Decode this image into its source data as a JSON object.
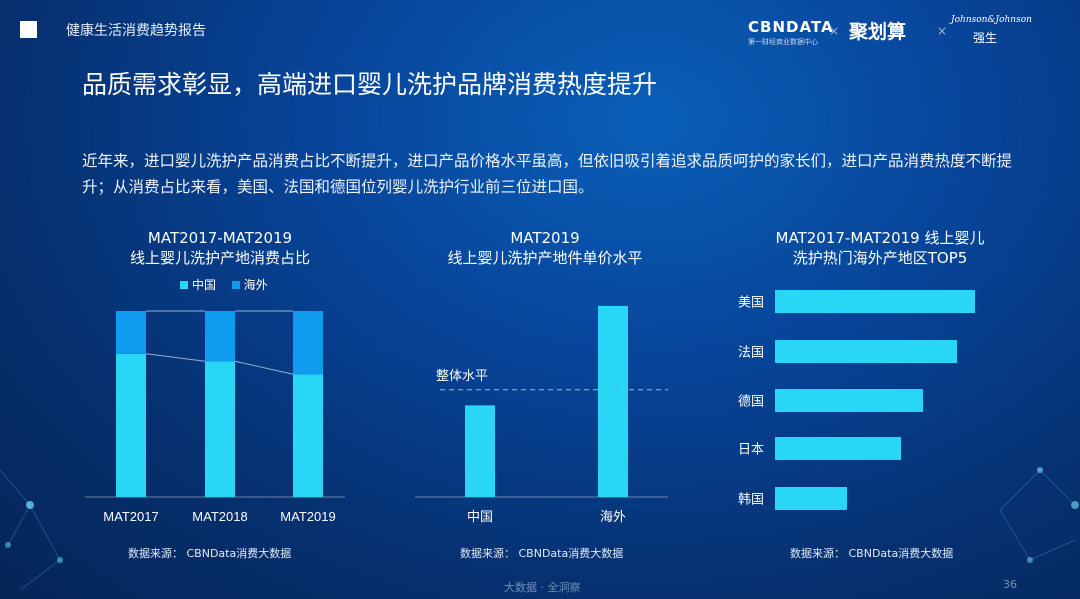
{
  "header": {
    "report_name": "健康生活消费趋势报告",
    "logos": {
      "cbn": "CBNDATA",
      "cbn_sub": "第一财经商业数据中心",
      "sep": "×",
      "jhs": "聚划算",
      "jj_script": "Johnson&Johnson",
      "jj_sub": "强生"
    }
  },
  "title": "品质需求彰显，高端进口婴儿洗护品牌消费热度提升",
  "intro": "近年来，进口婴儿洗护产品消费占比不断提升，进口产品价格水平虽高，但依旧吸引着追求品质呵护的家长们，进口产品消费热度不断提升；从消费占比来看，美国、法国和德国位列婴儿洗护行业前三位进口国。",
  "chart_data": [
    {
      "type": "bar",
      "stacked": true,
      "title": "MAT2017-MAT2019\n线上婴儿洗护产地消费占比",
      "categories": [
        "MAT2017",
        "MAT2018",
        "MAT2019"
      ],
      "series": [
        {
          "name": "中国",
          "values": [
            77,
            73,
            66
          ]
        },
        {
          "name": "海外",
          "values": [
            23,
            27,
            34
          ]
        }
      ],
      "ylim": [
        0,
        100
      ],
      "legend": "top",
      "source": "数据来源： CBNData消费大数据",
      "colors": {
        "中国": "#2ad6f5",
        "海外": "#0f9cef"
      }
    },
    {
      "type": "bar",
      "title": "MAT2019\n线上婴儿洗护产地件单价水平",
      "categories": [
        "中国",
        "海外"
      ],
      "values": [
        47,
        98
      ],
      "reference_line": {
        "label": "整体水平",
        "value": 55
      },
      "ylim": [
        0,
        100
      ],
      "source": "数据来源： CBNData消费大数据",
      "color": "#2ad6f5"
    },
    {
      "type": "bar",
      "orientation": "horizontal",
      "title": "MAT2017-MAT2019 线上婴儿\n洗护热门海外产地区TOP5",
      "categories": [
        "美国",
        "法国",
        "德国",
        "日本",
        "韩国"
      ],
      "values": [
        100,
        91,
        74,
        63,
        36
      ],
      "xlim": [
        0,
        100
      ],
      "source": "数据来源： CBNData消费大数据",
      "color": "#2ad6f5"
    }
  ],
  "footer": {
    "text": "大数据 · 全洞察",
    "page": "36"
  }
}
